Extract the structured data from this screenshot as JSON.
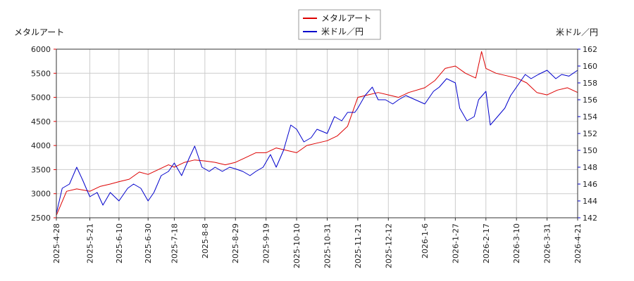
{
  "chart_data": {
    "type": "line",
    "left_axis_label": "メタルアート",
    "right_axis_label": "米ドル／円",
    "legend": [
      "メタルアート",
      "米ドル／円"
    ],
    "legend_placement": "top-center",
    "grid": true,
    "colors": {
      "metal": "#dd0000",
      "usd": "#0000cc"
    },
    "x_range": [
      "2025-04-28",
      "2026-04-21"
    ],
    "x_ticks": [
      "2025-4-28",
      "2025-5-21",
      "2025-6-10",
      "2025-6-30",
      "2025-7-18",
      "2025-8-8",
      "2025-8-29",
      "2025-9-19",
      "2025-10-10",
      "2025-10-31",
      "2025-11-21",
      "2025-12-12",
      "2026-1-6",
      "2026-1-27",
      "2026-2-17",
      "2026-3-10",
      "2026-3-31",
      "2026-4-21"
    ],
    "y_left_range": [
      2500,
      6000
    ],
    "y_left_ticks": [
      2500,
      3000,
      3500,
      4000,
      4500,
      5000,
      5500,
      6000
    ],
    "y_right_range": [
      142,
      162
    ],
    "y_right_ticks": [
      142,
      144,
      146,
      148,
      150,
      152,
      154,
      156,
      158,
      160,
      162
    ],
    "series": [
      {
        "name": "メタルアート",
        "axis": "left",
        "x": [
          "2025-04-28",
          "2025-05-05",
          "2025-05-12",
          "2025-05-21",
          "2025-05-28",
          "2025-06-04",
          "2025-06-10",
          "2025-06-17",
          "2025-06-24",
          "2025-06-30",
          "2025-07-07",
          "2025-07-14",
          "2025-07-18",
          "2025-07-25",
          "2025-08-01",
          "2025-08-08",
          "2025-08-15",
          "2025-08-22",
          "2025-08-29",
          "2025-09-05",
          "2025-09-12",
          "2025-09-19",
          "2025-09-26",
          "2025-10-03",
          "2025-10-10",
          "2025-10-17",
          "2025-10-24",
          "2025-10-31",
          "2025-11-07",
          "2025-11-14",
          "2025-11-21",
          "2025-11-28",
          "2025-12-05",
          "2025-12-12",
          "2025-12-19",
          "2025-12-26",
          "2026-01-06",
          "2026-01-13",
          "2026-01-20",
          "2026-01-27",
          "2026-02-03",
          "2026-02-10",
          "2026-02-14",
          "2026-02-17",
          "2026-02-24",
          "2026-03-03",
          "2026-03-10",
          "2026-03-17",
          "2026-03-24",
          "2026-03-31",
          "2026-04-07",
          "2026-04-14",
          "2026-04-21"
        ],
        "values": [
          2550,
          3050,
          3100,
          3050,
          3150,
          3200,
          3250,
          3300,
          3450,
          3400,
          3500,
          3600,
          3550,
          3650,
          3700,
          3680,
          3650,
          3600,
          3650,
          3750,
          3850,
          3850,
          3950,
          3900,
          3850,
          4000,
          4050,
          4100,
          4200,
          4400,
          5000,
          5050,
          5100,
          5050,
          5000,
          5100,
          5200,
          5350,
          5600,
          5650,
          5500,
          5400,
          5950,
          5600,
          5500,
          5450,
          5400,
          5300,
          5100,
          5050,
          5150,
          5200,
          5100
        ]
      },
      {
        "name": "米ドル／円",
        "axis": "right",
        "x": [
          "2025-04-28",
          "2025-05-02",
          "2025-05-07",
          "2025-05-12",
          "2025-05-16",
          "2025-05-21",
          "2025-05-26",
          "2025-05-30",
          "2025-06-04",
          "2025-06-10",
          "2025-06-16",
          "2025-06-20",
          "2025-06-25",
          "2025-06-30",
          "2025-07-04",
          "2025-07-09",
          "2025-07-14",
          "2025-07-18",
          "2025-07-23",
          "2025-07-28",
          "2025-08-01",
          "2025-08-06",
          "2025-08-11",
          "2025-08-15",
          "2025-08-20",
          "2025-08-25",
          "2025-08-29",
          "2025-09-03",
          "2025-09-08",
          "2025-09-12",
          "2025-09-17",
          "2025-09-22",
          "2025-09-26",
          "2025-10-01",
          "2025-10-06",
          "2025-10-10",
          "2025-10-15",
          "2025-10-20",
          "2025-10-24",
          "2025-10-31",
          "2025-11-05",
          "2025-11-10",
          "2025-11-14",
          "2025-11-19",
          "2025-11-21",
          "2025-11-26",
          "2025-12-01",
          "2025-12-05",
          "2025-12-10",
          "2025-12-15",
          "2025-12-19",
          "2025-12-24",
          "2026-01-06",
          "2026-01-12",
          "2026-01-16",
          "2026-01-21",
          "2026-01-27",
          "2026-01-30",
          "2026-02-04",
          "2026-02-09",
          "2026-02-12",
          "2026-02-17",
          "2026-02-20",
          "2026-02-25",
          "2026-03-02",
          "2026-03-06",
          "2026-03-10",
          "2026-03-16",
          "2026-03-20",
          "2026-03-25",
          "2026-03-31",
          "2026-04-06",
          "2026-04-10",
          "2026-04-15",
          "2026-04-21"
        ],
        "values": [
          142.5,
          145.5,
          146.0,
          148.0,
          146.5,
          144.5,
          145.0,
          143.5,
          145.0,
          144.0,
          145.5,
          146.0,
          145.5,
          144.0,
          145.0,
          147.0,
          147.5,
          148.5,
          147.0,
          149.0,
          150.5,
          148.0,
          147.5,
          148.0,
          147.5,
          148.0,
          147.8,
          147.5,
          147.0,
          147.5,
          148.0,
          149.5,
          148.0,
          150.0,
          153.0,
          152.5,
          151.0,
          151.5,
          152.5,
          152.0,
          154.0,
          153.5,
          154.5,
          154.5,
          155.0,
          156.5,
          157.5,
          156.0,
          156.0,
          155.5,
          156.0,
          156.5,
          155.5,
          157.0,
          157.5,
          158.5,
          158.0,
          155.0,
          153.5,
          154.0,
          156.0,
          157.0,
          153.0,
          154.0,
          155.0,
          156.5,
          157.5,
          159.0,
          158.5,
          159.0,
          159.5,
          158.5,
          159.0,
          158.8,
          159.5
        ]
      }
    ]
  }
}
